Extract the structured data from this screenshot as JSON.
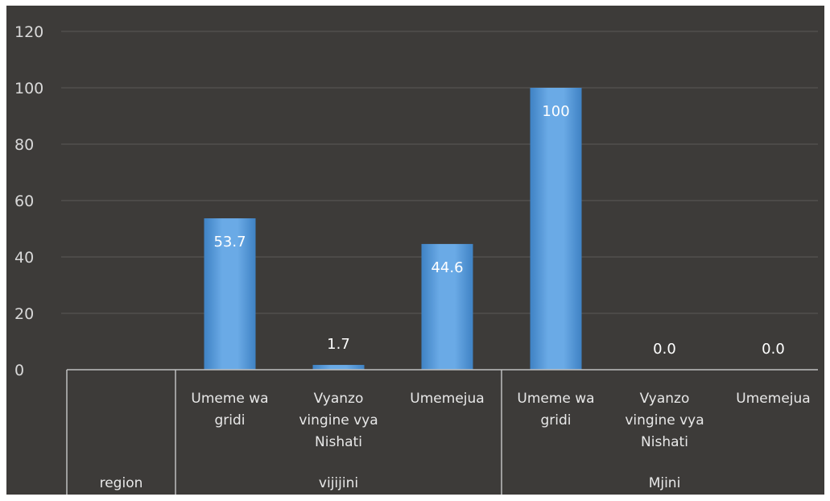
{
  "chart_data": {
    "type": "bar",
    "title": "",
    "xlabel": "",
    "ylabel": "",
    "ylim": [
      0,
      120
    ],
    "yticks": [
      0,
      20,
      40,
      60,
      80,
      100,
      120
    ],
    "grid": true,
    "series": [
      {
        "values": [
          53.7,
          1.7,
          44.6,
          100,
          0.0,
          0.0
        ],
        "data_labels": [
          "53.7",
          "1.7",
          "44.6",
          "100",
          "0.0",
          "0.0"
        ],
        "color": "#5b9bd5"
      }
    ],
    "categories": [
      [
        "Umeme wa",
        "gridi"
      ],
      [
        "Vyanzo",
        "vingine vya",
        "Nishati"
      ],
      [
        "Umemejua"
      ],
      [
        "Umeme wa",
        "gridi"
      ],
      [
        "Vyanzo",
        "vingine vya",
        "Nishati"
      ],
      [
        "Umemejua"
      ]
    ],
    "groups": [
      {
        "label": "vijijini",
        "span": 3
      },
      {
        "label": "Mjini",
        "span": 3
      }
    ],
    "corner_label": "region",
    "colors": {
      "background": "#3d3b39",
      "bar": "#5b9bd5",
      "grid": "#5a5856",
      "text": "#d9d9d9"
    }
  }
}
